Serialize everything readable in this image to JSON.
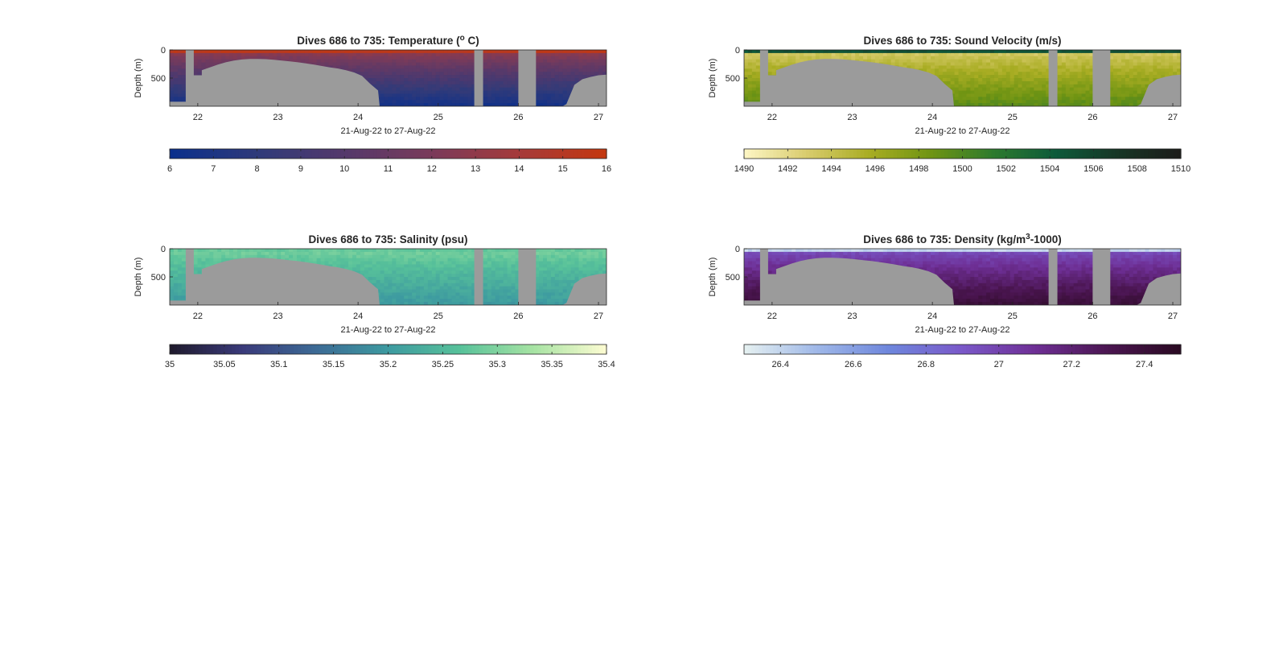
{
  "figure": {
    "background": "#ffffff",
    "mask_color": "#9b9b9b"
  },
  "chart_data": [
    {
      "type": "heatmap",
      "variable": "temperature",
      "title_text": "Dives 686 to 735: Temperature (",
      "title_sup": "o",
      "title_tail": " C)",
      "xlabel": "21-Aug-22 to 27-Aug-22",
      "ylabel": "Depth (m)",
      "xlim": [
        21.65,
        27.1
      ],
      "ylim": [
        1000,
        0
      ],
      "xticks": [
        22,
        23,
        24,
        25,
        26,
        27
      ],
      "yticks": [
        0,
        500
      ],
      "colorbar": {
        "range": [
          6,
          16
        ],
        "ticks": [
          "6",
          "7",
          "8",
          "9",
          "10",
          "11",
          "12",
          "13",
          "14",
          "15",
          "16"
        ],
        "colormap": [
          "#0a2f8c",
          "#2f3a7a",
          "#54396b",
          "#7a3a5a",
          "#a53a3a",
          "#c4380f"
        ]
      },
      "field": {
        "surface_value": 13.5,
        "deep_value": 6.5,
        "surface_layer_value": 15.5
      }
    },
    {
      "type": "heatmap",
      "variable": "sound_velocity",
      "title_text": "Dives 686 to 735: Sound Velocity (m/s)",
      "xlabel": "21-Aug-22 to 27-Aug-22",
      "ylabel": "Depth (m)",
      "xlim": [
        21.65,
        27.1
      ],
      "ylim": [
        1000,
        0
      ],
      "xticks": [
        22,
        23,
        24,
        25,
        26,
        27
      ],
      "yticks": [
        0,
        500
      ],
      "colorbar": {
        "range": [
          1490,
          1510
        ],
        "ticks": [
          "1490",
          "1492",
          "1494",
          "1496",
          "1498",
          "1500",
          "1502",
          "1504",
          "1506",
          "1508",
          "1510"
        ],
        "colormap": [
          "#fdf6c5",
          "#d9cc6e",
          "#a9ad23",
          "#6f9413",
          "#2d7a2e",
          "#0d5a3a",
          "#173525",
          "#1c1c1a"
        ]
      },
      "field": {
        "surface_value": 1492.5,
        "deep_value": 1499.5,
        "surface_layer_value": 1505
      }
    },
    {
      "type": "heatmap",
      "variable": "salinity",
      "title_text": "Dives 686 to 735: Salinity (psu)",
      "xlabel": "21-Aug-22 to 27-Aug-22",
      "ylabel": "Depth (m)",
      "xlim": [
        21.65,
        27.1
      ],
      "ylim": [
        1000,
        0
      ],
      "xticks": [
        22,
        23,
        24,
        25,
        26,
        27
      ],
      "yticks": [
        0,
        500
      ],
      "colorbar": {
        "range": [
          35,
          35.4
        ],
        "ticks": [
          "35",
          "35.05",
          "35.1",
          "35.15",
          "35.2",
          "35.25",
          "35.3",
          "35.35",
          "35.4"
        ],
        "colormap": [
          "#1f1a2c",
          "#3a3a7a",
          "#3c6a95",
          "#3d9aa0",
          "#58c29a",
          "#a7e3a3",
          "#fdfcd2"
        ]
      },
      "field": {
        "surface_value": 35.3,
        "deep_value": 35.2,
        "surface_layer_value": 35.28
      }
    },
    {
      "type": "heatmap",
      "variable": "density",
      "title_text": "Dives 686 to 735: Density (kg/m",
      "title_sup": "3",
      "title_tail": "-1000)",
      "xlabel": "21-Aug-22 to 27-Aug-22",
      "ylabel": "Depth (m)",
      "xlim": [
        21.65,
        27.1
      ],
      "ylim": [
        1000,
        0
      ],
      "xticks": [
        22,
        23,
        24,
        25,
        26,
        27
      ],
      "yticks": [
        0,
        500
      ],
      "colorbar": {
        "range": [
          26.3,
          27.5
        ],
        "ticks": [
          "26.4",
          "26.6",
          "26.8",
          "27",
          "27.2",
          "27.4"
        ],
        "tick_values": [
          26.4,
          26.6,
          26.8,
          27,
          27.2,
          27.4
        ],
        "colormap": [
          "#e6f1f1",
          "#9fb8e8",
          "#6e86dc",
          "#7a58c8",
          "#6e2f95",
          "#4a1550",
          "#2a0a22"
        ]
      },
      "field": {
        "surface_value": 26.9,
        "deep_value": 27.4,
        "surface_layer_value": 26.4
      }
    }
  ]
}
